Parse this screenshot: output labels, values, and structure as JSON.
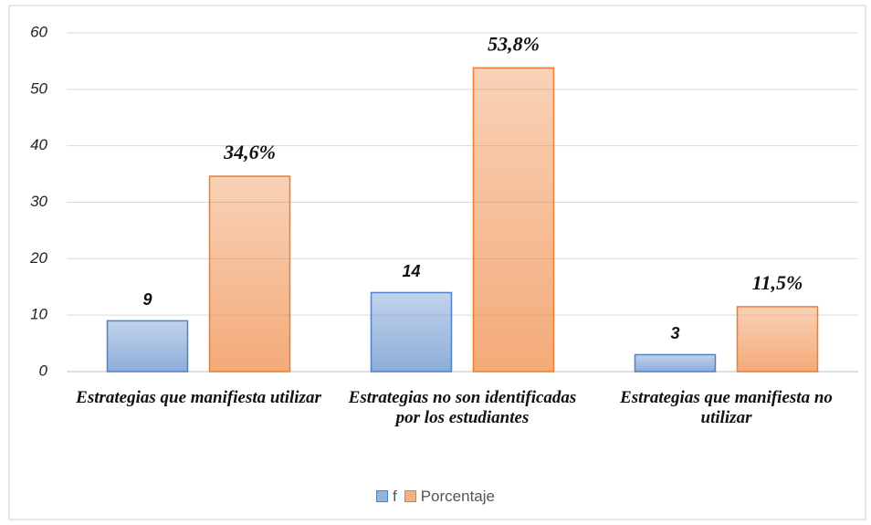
{
  "chart_data": {
    "type": "bar",
    "categories": [
      "Estrategias que manifiesta utilizar",
      "Estrategias no son identificadas por los estudiantes",
      "Estrategias que manifiesta no utilizar"
    ],
    "series": [
      {
        "name": "f",
        "color": "#4f81c7",
        "values": [
          9,
          14,
          3
        ]
      },
      {
        "name": "Porcentaje",
        "color": "#ed7d31",
        "values": [
          34.6,
          53.8,
          11.5
        ],
        "value_labels": [
          "34,6%",
          "53,8%",
          "11,5%"
        ]
      }
    ],
    "ylim": [
      0,
      60
    ],
    "yticks": [
      0,
      10,
      20,
      30,
      40,
      50,
      60
    ],
    "grid": true,
    "legend": "bottom"
  }
}
